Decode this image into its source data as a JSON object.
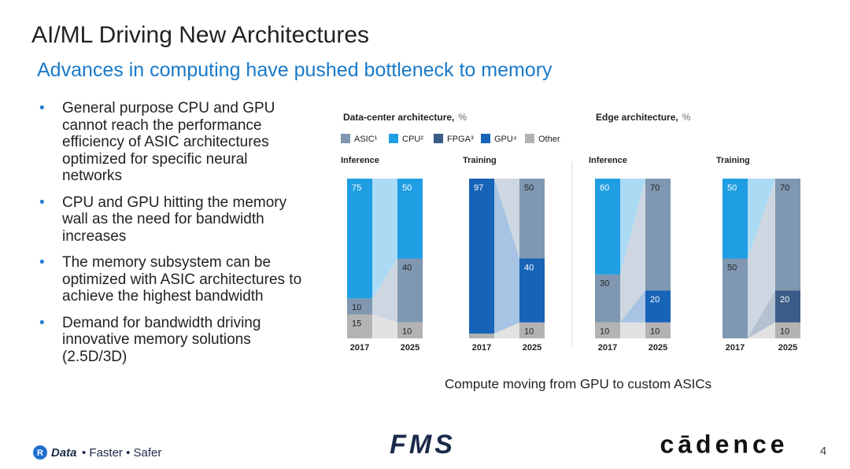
{
  "title": "AI/ML Driving New Architectures",
  "subtitle": "Advances in computing have pushed bottleneck to memory",
  "bullets": [
    "General purpose CPU and GPU cannot reach the performance efficiency of ASIC architectures optimized for specific neural networks",
    "CPU and GPU hitting the memory wall as the need for bandwidth increases",
    "The memory subsystem can be optimized with ASIC architectures to achieve the highest bandwidth",
    "Demand for bandwidth driving innovative memory solutions (2.5D/3D)"
  ],
  "groups": [
    {
      "title": "Data-center architecture,",
      "unit": "%"
    },
    {
      "title": "Edge architecture,",
      "unit": "%"
    }
  ],
  "legend": [
    {
      "name": "ASIC¹",
      "color": "#7f97b0"
    },
    {
      "name": "CPU²",
      "color": "#1f9ee3"
    },
    {
      "name": "FPGA³",
      "color": "#3a5c87"
    },
    {
      "name": "GPU⁴",
      "color": "#1763b8"
    },
    {
      "name": "Other",
      "color": "#b3b3b3"
    }
  ],
  "chart_data": [
    {
      "type": "bar",
      "stacked": true,
      "title": "Inference",
      "categories": [
        "2017",
        "2025"
      ],
      "ylim": [
        0,
        100
      ],
      "series": [
        {
          "values": [
            10,
            40
          ]
        },
        {
          "values": [
            75,
            50
          ]
        },
        {
          "values": [
            null,
            null
          ]
        },
        {
          "values": [
            null,
            null
          ]
        },
        {
          "values": [
            15,
            10
          ]
        }
      ]
    },
    {
      "type": "bar",
      "stacked": true,
      "title": "Training",
      "categories": [
        "2017",
        "2025"
      ],
      "ylim": [
        0,
        100
      ],
      "series": [
        {
          "values": [
            null,
            50
          ]
        },
        {
          "values": [
            null,
            null
          ]
        },
        {
          "values": [
            null,
            null
          ]
        },
        {
          "values": [
            97,
            40
          ]
        },
        {
          "values": [
            3,
            10
          ]
        }
      ]
    },
    {
      "type": "bar",
      "stacked": true,
      "title": "Inference",
      "categories": [
        "2017",
        "2025"
      ],
      "ylim": [
        0,
        100
      ],
      "series": [
        {
          "values": [
            30,
            70
          ]
        },
        {
          "values": [
            60,
            null
          ]
        },
        {
          "values": [
            null,
            null
          ]
        },
        {
          "values": [
            null,
            20
          ]
        },
        {
          "values": [
            10,
            10
          ]
        }
      ]
    },
    {
      "type": "bar",
      "stacked": true,
      "title": "Training",
      "categories": [
        "2017",
        "2025"
      ],
      "ylim": [
        0,
        100
      ],
      "series": [
        {
          "values": [
            50,
            70
          ]
        },
        {
          "values": [
            50,
            null
          ]
        },
        {
          "values": [
            null,
            20
          ]
        },
        {
          "values": [
            null,
            null
          ]
        },
        {
          "values": [
            null,
            10
          ]
        }
      ]
    }
  ],
  "caption": "Compute moving from GPU to custom ASICs",
  "footer": {
    "badge": "R",
    "brand": "Data",
    "tagline": "• Faster • Safer",
    "center_logo": "FMS",
    "right_logo": "cādence",
    "page": "4"
  }
}
